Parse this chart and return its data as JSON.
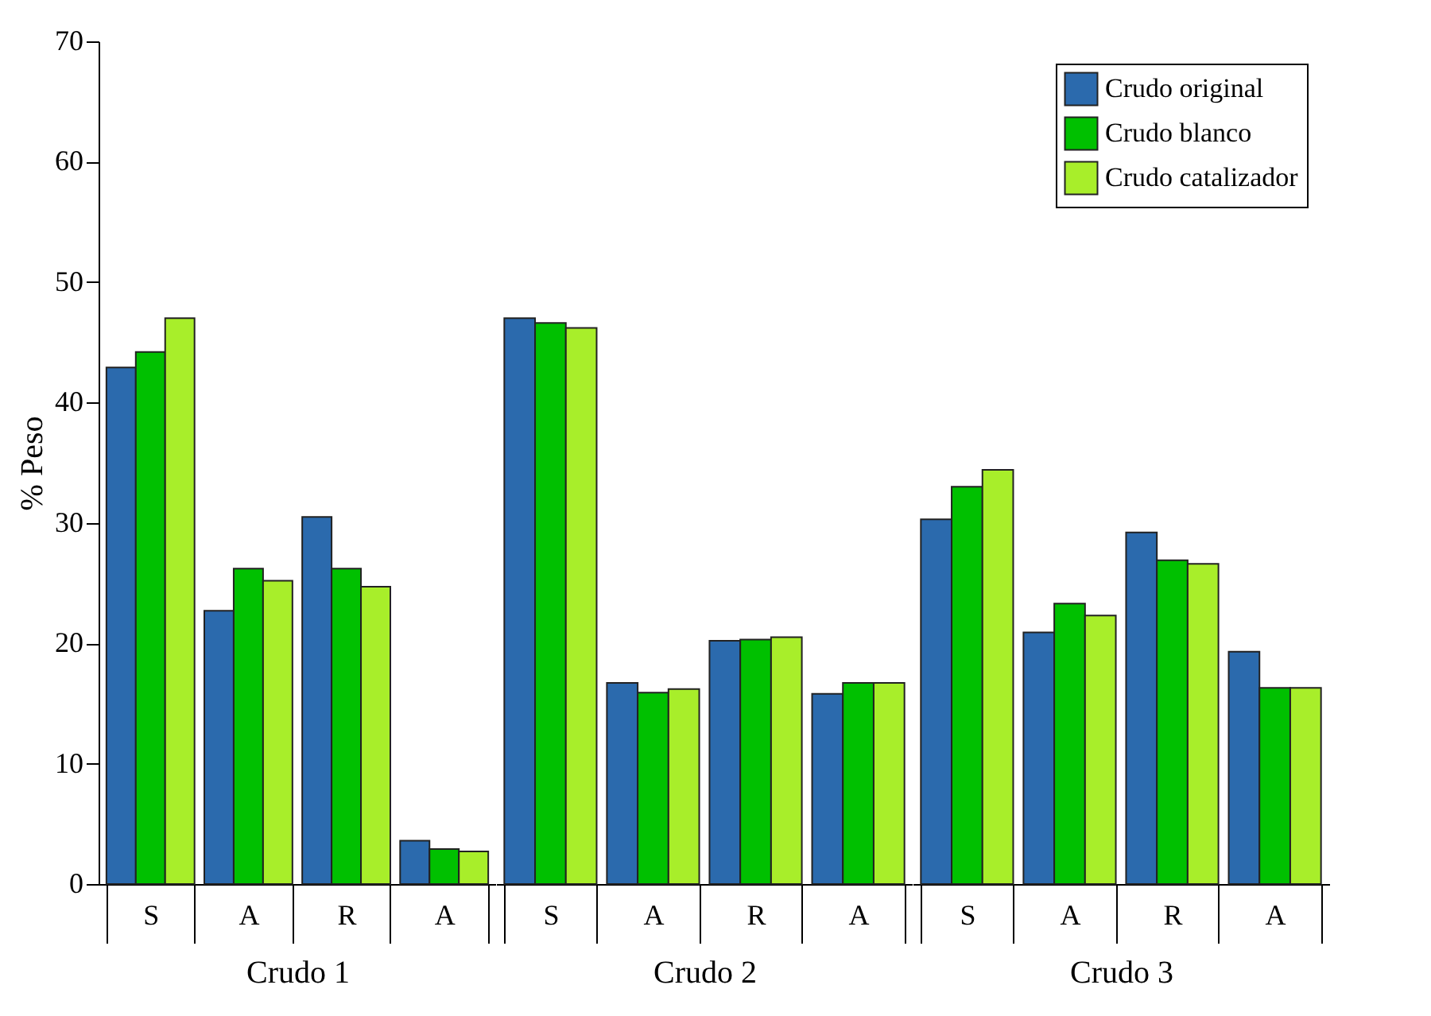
{
  "chart_data": [
    {
      "type": "bar",
      "xlabel": "Crudo 1",
      "ylabel": "% Peso",
      "categories": [
        "S",
        "A",
        "R",
        "A"
      ],
      "ylim": [
        0,
        70
      ],
      "yticks": [
        0,
        10,
        20,
        30,
        40,
        50,
        60,
        70
      ],
      "tick_labels": "xy",
      "series": [
        {
          "color": "#2b6aad",
          "values": [
            42.9,
            22.7,
            30.5,
            3.6
          ]
        },
        {
          "color": "#00c000",
          "values": [
            44.2,
            26.2,
            26.2,
            2.9
          ]
        },
        {
          "color": "#a8ee2a",
          "values": [
            47.0,
            25.2,
            24.7,
            2.7
          ]
        }
      ]
    },
    {
      "type": "bar",
      "xlabel": "Crudo 2",
      "categories": [
        "S",
        "A",
        "R",
        "A"
      ],
      "ylim": [
        0,
        70
      ],
      "yticks": [
        0,
        10,
        20,
        30,
        40,
        50,
        60,
        70
      ],
      "tick_labels": "x",
      "series": [
        {
          "color": "#2b6aad",
          "values": [
            47.0,
            16.7,
            20.2,
            15.8
          ]
        },
        {
          "color": "#00c000",
          "values": [
            46.6,
            15.9,
            20.3,
            16.7
          ]
        },
        {
          "color": "#a8ee2a",
          "values": [
            46.2,
            16.2,
            20.5,
            16.7
          ]
        }
      ]
    },
    {
      "type": "bar",
      "xlabel": "Crudo 3",
      "categories": [
        "S",
        "A",
        "R",
        "A"
      ],
      "ylim": [
        0,
        70
      ],
      "yticks": [
        0,
        10,
        20,
        30,
        40,
        50,
        60,
        70
      ],
      "tick_labels": "x",
      "legend": "top right",
      "series": [
        {
          "name": "Crudo original",
          "color": "#2b6aad",
          "values": [
            30.3,
            20.9,
            29.2,
            19.3
          ]
        },
        {
          "name": "Crudo blanco",
          "color": "#00c000",
          "values": [
            33.0,
            23.3,
            26.9,
            16.3
          ]
        },
        {
          "name": "Crudo catalizador",
          "color": "#a8ee2a",
          "values": [
            34.4,
            22.3,
            26.6,
            16.3
          ]
        }
      ]
    }
  ]
}
